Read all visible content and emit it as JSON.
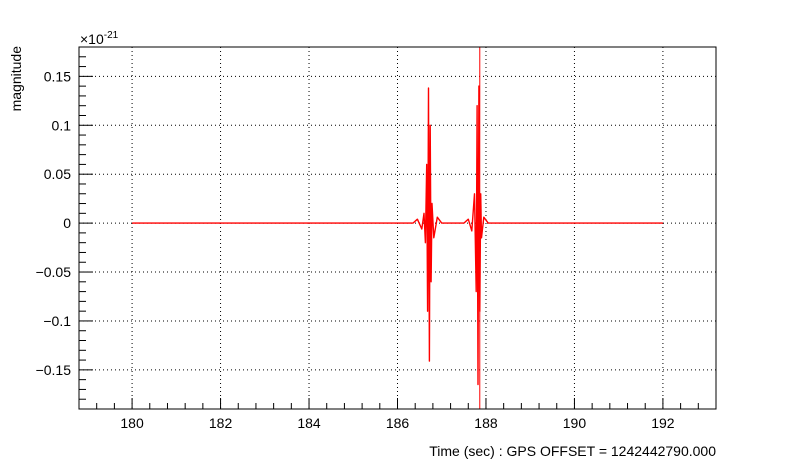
{
  "chart_data": {
    "type": "line",
    "title": "",
    "xlabel": "Time (sec) : GPS OFFSET = 1242442790.000",
    "ylabel": "magnitude",
    "y_multiplier_base": "×10",
    "y_multiplier_exponent": "-21",
    "xlim": [
      178.8,
      193.2
    ],
    "ylim": [
      -0.19,
      0.18
    ],
    "grid": true,
    "x_ticks": [
      180,
      182,
      184,
      186,
      188,
      190,
      192
    ],
    "x_tick_labels": [
      "180",
      "182",
      "184",
      "186",
      "188",
      "190",
      "192"
    ],
    "y_ticks": [
      -0.15,
      -0.1,
      -0.05,
      0,
      0.05,
      0.1,
      0.15
    ],
    "y_tick_labels": [
      "−0.15",
      "−0.1",
      "−0.05",
      "0",
      "0.05",
      "0.1",
      "0.15"
    ],
    "series": [
      {
        "color": "#ff0000",
        "x": [
          180.0,
          186.35,
          186.45,
          186.55,
          186.6,
          186.63,
          186.66,
          186.68,
          186.7,
          186.72,
          186.74,
          186.76,
          186.78,
          186.82,
          186.9,
          187.0,
          187.2,
          187.5,
          187.6,
          187.68,
          187.74,
          187.78,
          187.8,
          187.82,
          187.84,
          187.86,
          187.88,
          187.9,
          187.95,
          188.05,
          188.2,
          192.0
        ],
        "y": [
          0.0,
          0.0,
          0.004,
          -0.006,
          0.01,
          -0.02,
          0.06,
          -0.09,
          0.138,
          -0.141,
          0.1,
          -0.06,
          0.02,
          -0.015,
          0.006,
          0.0,
          0.0,
          0.0,
          0.004,
          -0.008,
          0.03,
          -0.07,
          0.12,
          -0.165,
          0.14,
          -0.09,
          0.03,
          -0.015,
          0.006,
          0.0,
          0.0,
          0.0
        ]
      }
    ],
    "markers": [
      {
        "x": 187.86,
        "color": "#ff0000"
      }
    ]
  }
}
